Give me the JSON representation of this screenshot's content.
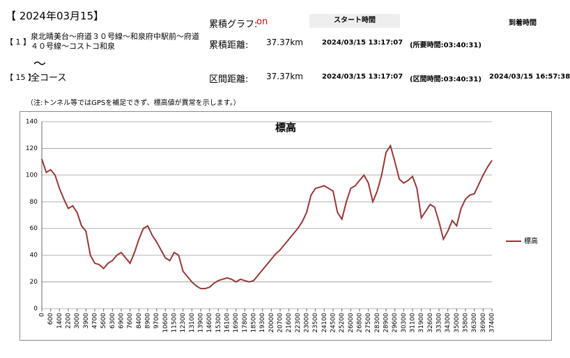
{
  "header": {
    "date": "【 2024年03月15】",
    "route_no": "【 1 】",
    "route": "泉北晴美台～府道３０号線～和泉府中駅前～府道４０号線～コストコ和泉",
    "tilde": "～",
    "section_no": "【 15 】",
    "section": "全コース",
    "graph_label": "累積グラフ:",
    "graph_state": "on",
    "start_header": "スタート時間",
    "arrival_header": "到着時間",
    "rows": [
      [
        "累積距離:",
        "37.37km",
        "2024/03/15 13:17:07",
        "(所要時間:03:40:31)"
      ],
      [
        "区間距離:",
        "37.37km",
        "2024/03/15 13:17:07",
        "(区間時間:03:40:31)",
        "2024/03/15 16:57:38"
      ]
    ],
    "note": "（注:トンネル等ではGPSを補足できず、標高値が異常を示します。）"
  },
  "chart_data": {
    "type": "line",
    "title": "標高",
    "categories": [
      "0",
      null,
      "600",
      null,
      "1400",
      null,
      "2200",
      null,
      "3000",
      null,
      "3900",
      null,
      "4700",
      null,
      "5600",
      null,
      "6300",
      null,
      "6900",
      null,
      "7600",
      null,
      "8400",
      null,
      "8900",
      null,
      "9700",
      null,
      "10600",
      null,
      "11500",
      null,
      "12300",
      null,
      "13100",
      null,
      "13900",
      null,
      "14600",
      null,
      "15300",
      null,
      "16100",
      null,
      "16900",
      null,
      "17800",
      null,
      "18500",
      null,
      "19300",
      null,
      "20000",
      null,
      "20700",
      null,
      "21600",
      null,
      "22300",
      null,
      "23000",
      null,
      "23500",
      null,
      "24100",
      null,
      "24500",
      null,
      "25200",
      null,
      "26000",
      null,
      "26800",
      null,
      "27500",
      null,
      "28300",
      null,
      "28900",
      null,
      "29600",
      null,
      "30300",
      null,
      "31100",
      null,
      "31900",
      null,
      "32600",
      null,
      "33300",
      null,
      "34300",
      null,
      "35000",
      null,
      "35800",
      null,
      "36300",
      null,
      "36900",
      null,
      "37400"
    ],
    "series": [
      {
        "name": "標高",
        "color": "#953735",
        "values": [
          112,
          102,
          104,
          100,
          90,
          82,
          75,
          77,
          72,
          62,
          58,
          40,
          34,
          33,
          30,
          34,
          36,
          40,
          42,
          38,
          34,
          42,
          52,
          60,
          62,
          55,
          50,
          44,
          38,
          36,
          42,
          40,
          28,
          24,
          20,
          17,
          15,
          15,
          16,
          19,
          21,
          22,
          23,
          22,
          20,
          22,
          21,
          20,
          21,
          25,
          29,
          33,
          37,
          41,
          44,
          48,
          52,
          56,
          60,
          65,
          72,
          85,
          90,
          91,
          92,
          90,
          88,
          72,
          67,
          80,
          90,
          92,
          96,
          100,
          94,
          80,
          88,
          100,
          117,
          122,
          110,
          97,
          94,
          96,
          99,
          90,
          68,
          73,
          78,
          76,
          65,
          52,
          58,
          66,
          62,
          75,
          82,
          85,
          86,
          93,
          100,
          106,
          111
        ]
      }
    ],
    "ylim": [
      0,
      140
    ],
    "yticks": [
      0,
      20,
      40,
      60,
      80,
      100,
      120,
      140
    ],
    "grid": true,
    "legend": "right"
  }
}
